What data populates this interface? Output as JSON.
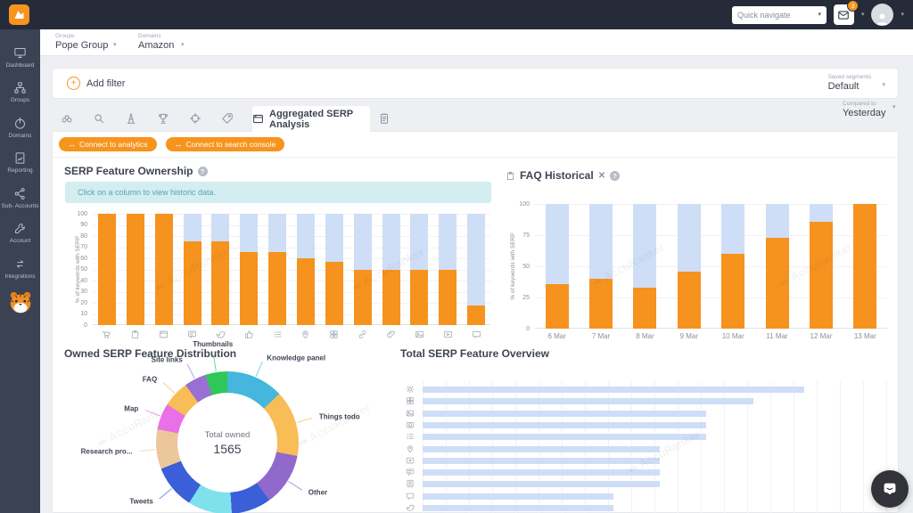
{
  "colors": {
    "accent_orange": "#f7941e",
    "bar_orange": "#f6921e",
    "bar_blue": "#cfdef7",
    "topbar_bg": "#262b3a",
    "sidebar_bg": "#3b4254",
    "notice_bg": "#d4edf0",
    "notice_text": "#55a6b2"
  },
  "topbar": {
    "quick_navigate_placeholder": "Quick navigate",
    "notification_badge": "3"
  },
  "sidebar": {
    "items": [
      {
        "label": "Dashboard",
        "icon": "monitor"
      },
      {
        "label": "Groups",
        "icon": "sitemap"
      },
      {
        "label": "Domains",
        "icon": "power"
      },
      {
        "label": "Reporting",
        "icon": "report"
      },
      {
        "label": "Sub- Accounts",
        "icon": "share"
      },
      {
        "label": "Account",
        "icon": "wrench"
      },
      {
        "label": "Integrations",
        "icon": "swap"
      }
    ]
  },
  "breadcrumb": {
    "groups_label": "Groups",
    "groups_value": "Pope Group",
    "domains_label": "Domains",
    "domains_value": "Amazon"
  },
  "filter_bar": {
    "add_filter": "Add filter",
    "saved_segments_label": "Saved segments",
    "saved_segments_value": "Default"
  },
  "tabs": {
    "left_icons": [
      "binoculars",
      "search",
      "tower",
      "trophy",
      "target",
      "tag"
    ],
    "active": {
      "icon": "window",
      "label": "Aggregated SERP Analysis"
    },
    "right_icon": "notes"
  },
  "actions": {
    "connect_analytics": "Connect to analytics",
    "connect_search_console": "Connect to search console"
  },
  "compared_to": {
    "label": "Compared to",
    "value": "Yesterday"
  },
  "watermark": "AccuRanker",
  "chart_data": [
    {
      "id": "serp_feature_ownership",
      "type": "bar",
      "stacked": true,
      "title": "SERP Feature Ownership",
      "notice": "Click on a column to view historic data.",
      "ylabel": "% of keywords with SERP",
      "ylim": [
        0,
        100
      ],
      "yticks": [
        0,
        10,
        20,
        30,
        40,
        50,
        60,
        70,
        80,
        90,
        100
      ],
      "categories": [
        "cart",
        "clipboard",
        "window",
        "comment",
        "bird",
        "thumbs",
        "list",
        "pin",
        "grid",
        "link",
        "paperclip",
        "image",
        "video",
        "chat"
      ],
      "series": [
        {
          "name": "Owned",
          "color": "#f6921e",
          "values": [
            100,
            100,
            100,
            75,
            75,
            66,
            66,
            60,
            57,
            50,
            50,
            50,
            50,
            18
          ]
        },
        {
          "name": "Not owned",
          "color": "#cfdef7",
          "values": [
            0,
            0,
            0,
            25,
            25,
            34,
            34,
            40,
            43,
            50,
            50,
            50,
            50,
            82
          ]
        }
      ]
    },
    {
      "id": "faq_historical",
      "type": "bar",
      "stacked": true,
      "title": "FAQ Historical",
      "ylabel": "% of keywords with SERP",
      "ylim": [
        0,
        100
      ],
      "yticks": [
        0,
        25,
        50,
        75,
        100
      ],
      "categories": [
        "6 Mar",
        "7 Mar",
        "8 Mar",
        "9 Mar",
        "10 Mar",
        "11 Mar",
        "12 Mar",
        "13 Mar"
      ],
      "series": [
        {
          "name": "Owned",
          "color": "#f6921e",
          "values": [
            36,
            40,
            33,
            46,
            60,
            73,
            86,
            100
          ]
        },
        {
          "name": "Not owned",
          "color": "#cfdef7",
          "values": [
            64,
            60,
            67,
            54,
            40,
            27,
            14,
            0
          ]
        }
      ]
    },
    {
      "id": "owned_serp_feature_distribution",
      "type": "pie",
      "title": "Owned SERP Feature Distribution",
      "center_label": "Total owned",
      "center_value": "1565",
      "slices": [
        {
          "label": "Knowledge panel",
          "value": 13,
          "color": "#45b6dd"
        },
        {
          "label": "Things todo",
          "value": 15,
          "color": "#f8bd57"
        },
        {
          "label": "Other",
          "value": 12,
          "color": "#9168cb"
        },
        {
          "label": "",
          "value": 9,
          "color": "#3a5fd8"
        },
        {
          "label": "",
          "value": 10,
          "color": "#7fe1ec"
        },
        {
          "label": "Tweets",
          "value": 10,
          "color": "#3a5fd8"
        },
        {
          "label": "Research pro...",
          "value": 9,
          "color": "#edc79c"
        },
        {
          "label": "Map",
          "value": 6,
          "color": "#e970e6"
        },
        {
          "label": "FAQ",
          "value": 6,
          "color": "#f8bd57"
        },
        {
          "label": "Site links",
          "value": 5,
          "color": "#9a6fd4"
        },
        {
          "label": "Thumbnails",
          "value": 5,
          "color": "#2fc858"
        }
      ]
    },
    {
      "id": "total_serp_feature_overview",
      "type": "bar",
      "orientation": "horizontal",
      "title": "Total SERP Feature Overview",
      "categories": [
        "sun",
        "grid",
        "image",
        "camera",
        "list",
        "pin",
        "video",
        "comment",
        "knowledge",
        "chat",
        "bird"
      ],
      "values": [
        82,
        71,
        61,
        61,
        61,
        51,
        51,
        51,
        51,
        41,
        41
      ],
      "color": "#cfdef7"
    }
  ]
}
